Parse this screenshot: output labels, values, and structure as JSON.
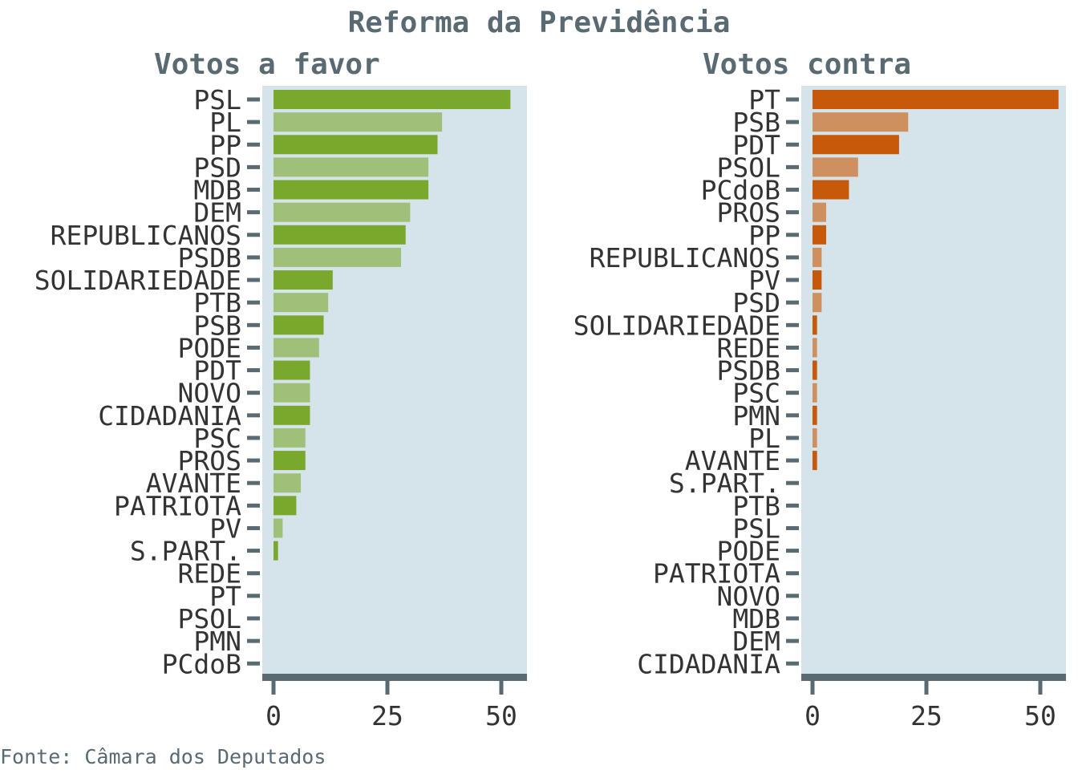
{
  "title": "Reforma da Previdência",
  "source": "Fonte: Câmara dos Deputados",
  "colors": {
    "panel_bg": "#d5e4eb",
    "axis": "#5a6a72",
    "text": "#333333",
    "title": "#5a6a72",
    "favor_dark": "#79a82d",
    "favor_light": "#a0c07a",
    "contra_dark": "#c75a0a",
    "contra_light": "#cf9060"
  },
  "chart_data": [
    {
      "type": "bar",
      "orientation": "horizontal",
      "title": "Votos a favor",
      "xlim": [
        0,
        55
      ],
      "xticks": [
        0,
        25,
        50
      ],
      "categories": [
        "PSL",
        "PL",
        "PP",
        "PSD",
        "MDB",
        "DEM",
        "REPUBLICANOS",
        "PSDB",
        "SOLIDARIEDADE",
        "PTB",
        "PSB",
        "PODE",
        "PDT",
        "NOVO",
        "CIDADANIA",
        "PSC",
        "PROS",
        "AVANTE",
        "PATRIOTA",
        "PV",
        "S.PART.",
        "REDE",
        "PT",
        "PSOL",
        "PMN",
        "PCdoB"
      ],
      "values": [
        52,
        37,
        36,
        34,
        34,
        30,
        29,
        28,
        13,
        12,
        11,
        10,
        8,
        8,
        8,
        7,
        7,
        6,
        5,
        2,
        1,
        0,
        0,
        0,
        0,
        0
      ]
    },
    {
      "type": "bar",
      "orientation": "horizontal",
      "title": "Votos contra",
      "xlim": [
        0,
        55
      ],
      "xticks": [
        0,
        25,
        50
      ],
      "categories": [
        "PT",
        "PSB",
        "PDT",
        "PSOL",
        "PCdoB",
        "PROS",
        "PP",
        "REPUBLICANOS",
        "PV",
        "PSD",
        "SOLIDARIEDADE",
        "REDE",
        "PSDB",
        "PSC",
        "PMN",
        "PL",
        "AVANTE",
        "S.PART.",
        "PTB",
        "PSL",
        "PODE",
        "PATRIOTA",
        "NOVO",
        "MDB",
        "DEM",
        "CIDADANIA"
      ],
      "values": [
        54,
        21,
        19,
        10,
        8,
        3,
        3,
        2,
        2,
        2,
        1,
        1,
        1,
        1,
        1,
        1,
        1,
        0,
        0,
        0,
        0,
        0,
        0,
        0,
        0,
        0
      ]
    }
  ]
}
